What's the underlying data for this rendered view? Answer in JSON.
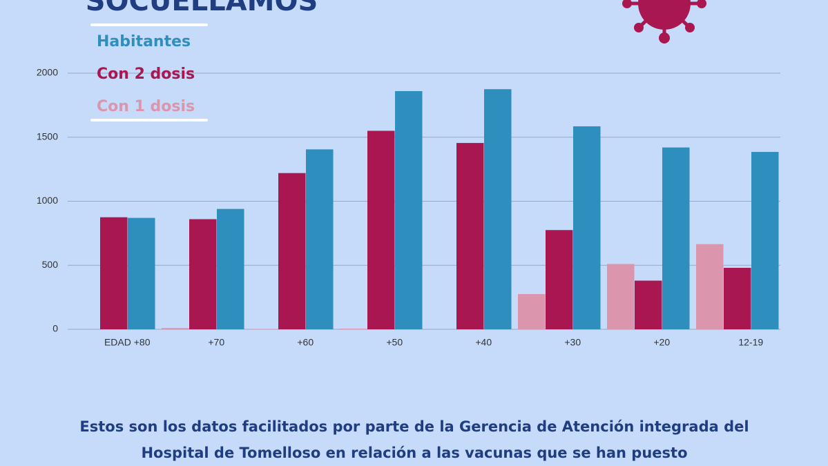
{
  "chart_data": {
    "type": "bar",
    "title": "SOCUELLAMOS",
    "categories": [
      "EDAD +80",
      "+70",
      "+60",
      "+50",
      "+40",
      "+30",
      "+20",
      "12-19"
    ],
    "series": [
      {
        "name": "Con 1 dosis",
        "color": "#db95ad",
        "values": [
          0,
          10,
          3,
          5,
          0,
          275,
          510,
          665
        ]
      },
      {
        "name": "Con 2 dosis",
        "color": "#a8174f",
        "values": [
          875,
          860,
          1220,
          1550,
          1455,
          775,
          380,
          480
        ]
      },
      {
        "name": "Habitantes",
        "color": "#2e8ebd",
        "values": [
          870,
          940,
          1405,
          1860,
          1875,
          1585,
          1420,
          1385
        ]
      }
    ],
    "ylim": [
      0,
      2000
    ],
    "yticks": [
      0,
      500,
      1000,
      1500,
      2000
    ],
    "grid": true,
    "caption": [
      "Estos son los datos facilitados por parte de la Gerencia de Atención integrada del",
      "Hospital de Tomelloso en relación a las vacunas que se han puesto"
    ]
  }
}
